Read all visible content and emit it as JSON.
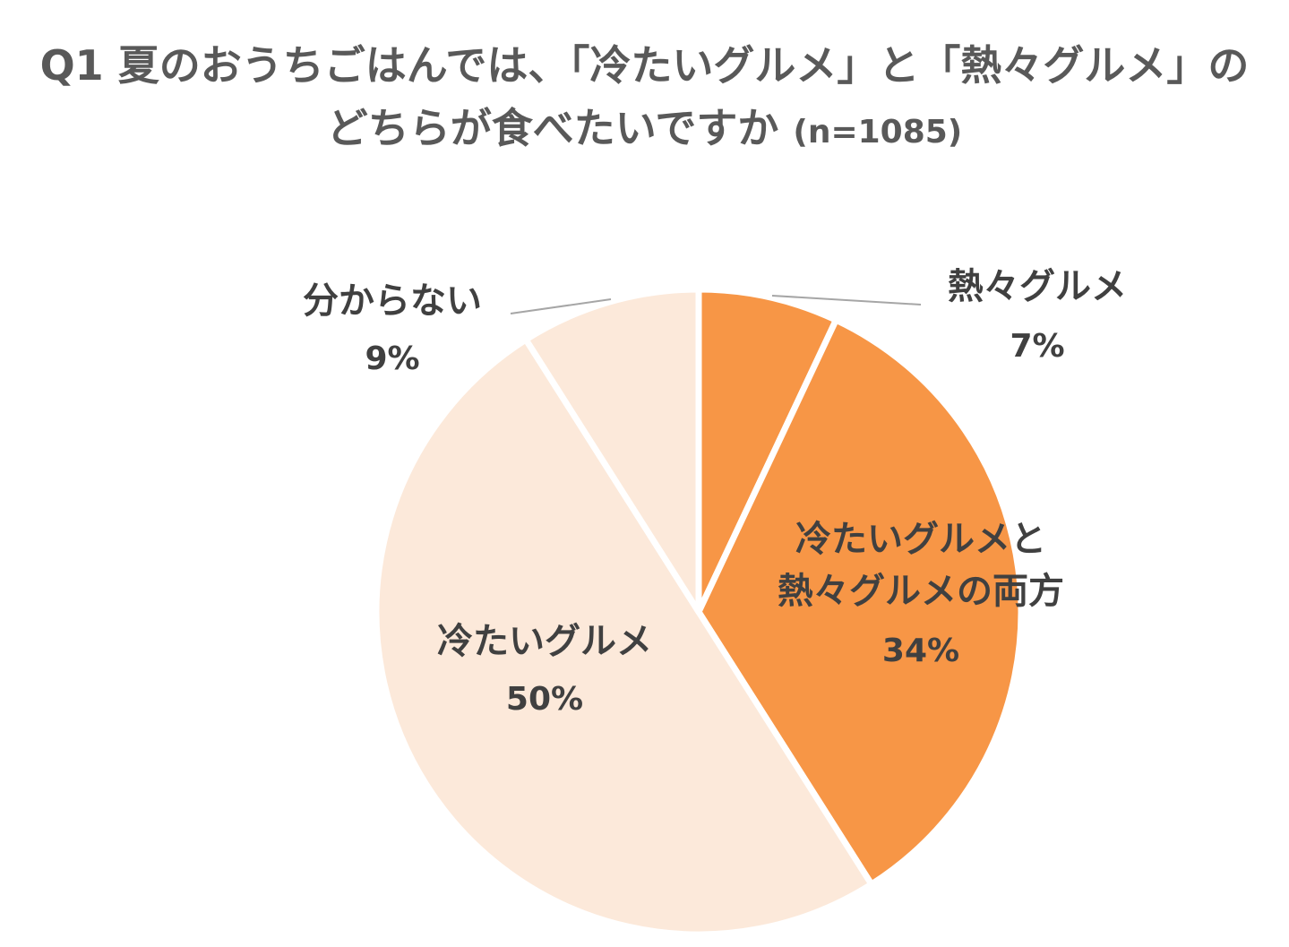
{
  "title": {
    "line1": "Q1 夏のおうちごはんでは、「冷たいグルメ」と「熱々グルメ」の",
    "line2": "どちらが食べたいですか",
    "sample": "(n=1085)"
  },
  "chart_data": {
    "type": "pie",
    "categories": [
      "熱々グルメ",
      "冷たいグルメと熱々グルメの両方",
      "冷たいグルメ",
      "分からない"
    ],
    "values": [
      7,
      34,
      50,
      9
    ],
    "labels": [
      {
        "lines": [
          "熱々グルメ"
        ],
        "pct": "7%"
      },
      {
        "lines": [
          "冷たいグルメと",
          "熱々グルメの両方"
        ],
        "pct": "34%"
      },
      {
        "lines": [
          "冷たいグルメ"
        ],
        "pct": "50%"
      },
      {
        "lines": [
          "分からない"
        ],
        "pct": "9%"
      }
    ],
    "colors": [
      "#F79646",
      "#F79646",
      "#FCE9DA",
      "#FCE9DA"
    ],
    "start": "12 o'clock",
    "direction": "clockwise"
  }
}
